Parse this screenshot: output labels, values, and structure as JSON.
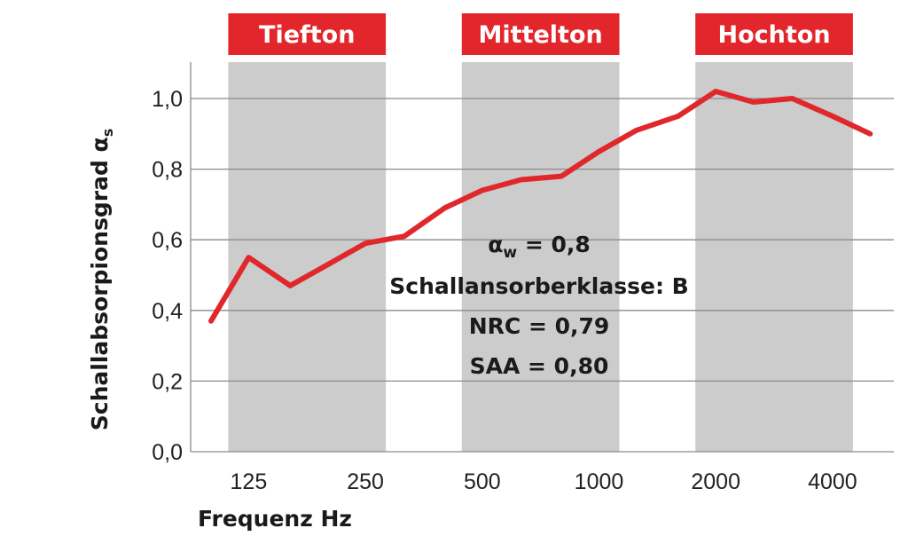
{
  "chart_data": {
    "type": "line",
    "title": "",
    "xlabel": "Frequenz Hz",
    "ylabel": "Schallabsorpionsgrad α",
    "ylabel_subscript": "s",
    "x": [
      100,
      125,
      160,
      200,
      250,
      315,
      400,
      500,
      630,
      800,
      1000,
      1250,
      1600,
      2000,
      2500,
      3150,
      4000,
      5000
    ],
    "x_tick_labels": [
      "125",
      "250",
      "500",
      "1000",
      "2000",
      "4000"
    ],
    "x_tick_values": [
      125,
      250,
      500,
      1000,
      2000,
      4000
    ],
    "y_tick_labels": [
      "0,0",
      "0,2",
      "0,4",
      "0,6",
      "0,8",
      "1,0"
    ],
    "y_tick_values": [
      0,
      0.2,
      0.4,
      0.6,
      0.8,
      1.0
    ],
    "ylim": [
      0,
      1.1
    ],
    "grid": "horizontal",
    "series": [
      {
        "name": "Schallabsorptionsgrad",
        "color": "#e0282c",
        "values": [
          0.37,
          0.55,
          0.47,
          0.53,
          0.59,
          0.61,
          0.69,
          0.74,
          0.77,
          0.78,
          0.85,
          0.91,
          0.95,
          1.02,
          0.99,
          1.0,
          0.95,
          0.9
        ]
      }
    ],
    "bands": [
      {
        "label": "Tiefton",
        "from": 125,
        "to": 250
      },
      {
        "label": "Mittelton",
        "from": 500,
        "to": 1000
      },
      {
        "label": "Hochton",
        "from": 2000,
        "to": 4000
      }
    ],
    "band_color": "#cccccc",
    "label_color": "#e3262b",
    "annotations": {
      "aw_symbol": "α",
      "aw_sub": "w",
      "aw_value": " = 0,8",
      "klasse": "Schallansorberklasse: B",
      "nrc": "NRC = 0,79",
      "saa": "SAA = 0,80"
    }
  }
}
